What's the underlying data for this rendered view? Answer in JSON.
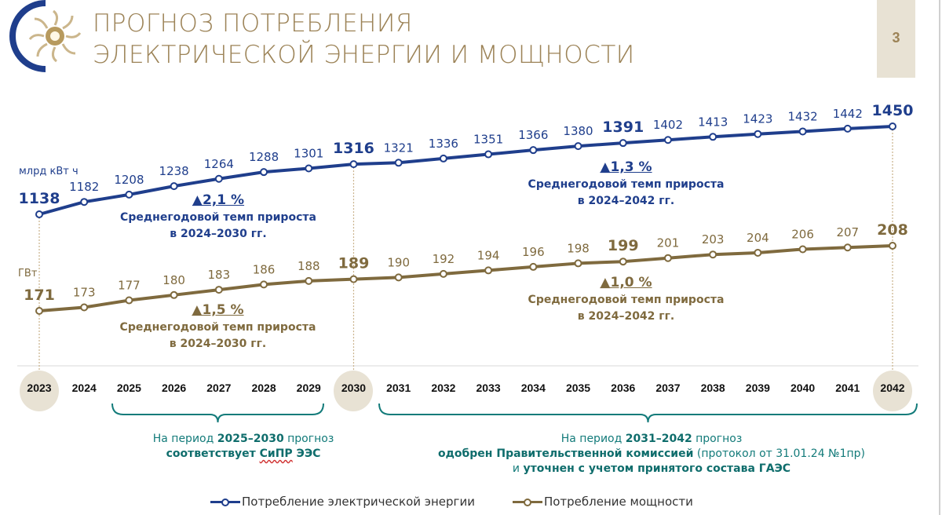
{
  "header": {
    "title_line1": "ПРОГНОЗ ПОТРЕБЛЕНИЯ",
    "title_line2": "ЭЛЕКТРИЧЕСКОЙ ЭНЕРГИИ И МОЩНОСТИ",
    "page_number": "3",
    "logo": "sun-logo-icon"
  },
  "colors": {
    "energy": "#1f3e8c",
    "power": "#7f6a3e",
    "title": "#9c8357",
    "period_text": "#137b7a",
    "highlight_circle": "#e8e2d4"
  },
  "chart_data": {
    "type": "line",
    "title": "Прогноз потребления электрической энергии и мощности",
    "x": [
      "2023",
      "2024",
      "2025",
      "2026",
      "2027",
      "2028",
      "2029",
      "2030",
      "2031",
      "2032",
      "2033",
      "2034",
      "2035",
      "2036",
      "2037",
      "2038",
      "2039",
      "2040",
      "2041",
      "2042"
    ],
    "series": [
      {
        "name": "Потребление электрической энергии",
        "unit": "млрд кВт ч",
        "values": [
          1138,
          1182,
          1208,
          1238,
          1264,
          1288,
          1301,
          1316,
          1321,
          1336,
          1351,
          1366,
          1380,
          1391,
          1402,
          1413,
          1423,
          1432,
          1442,
          1450
        ],
        "bold_points": [
          "2023",
          "2030",
          "2036",
          "2042"
        ]
      },
      {
        "name": "Потребление мощности",
        "unit": "ГВт",
        "values": [
          171,
          173,
          177,
          180,
          183,
          186,
          188,
          189,
          190,
          192,
          194,
          196,
          198,
          199,
          201,
          203,
          204,
          206,
          207,
          208
        ],
        "bold_points": [
          "2023",
          "2030",
          "2036",
          "2042"
        ]
      }
    ],
    "highlighted_years": [
      "2023",
      "2030",
      "2042"
    ],
    "legend_position": "bottom",
    "grid": false
  },
  "annotations": {
    "energy_2030": {
      "pct": "▲2,1 %",
      "line1": "Среднегодовой темп прироста",
      "line2": "в 2024–2030 гг."
    },
    "energy_2042": {
      "pct": "▲1,3 %",
      "line1": "Среднегодовой темп прироста",
      "line2": "в 2024–2042 гг."
    },
    "power_2030": {
      "pct": "▲1,5 %",
      "line1": "Среднегодовой темп прироста",
      "line2": "в 2024–2030 гг."
    },
    "power_2042": {
      "pct": "▲1,0 %",
      "line1": "Среднегодовой темп прироста",
      "line2": "в 2024–2042 гг."
    }
  },
  "periods": {
    "first": {
      "prefix": "На период ",
      "range": "2025–2030",
      "suffix": " прогноз",
      "line2_a": "соответствует ",
      "line2_b": "СиПР",
      "line2_c": " ЭЭС"
    },
    "second": {
      "prefix": "На период ",
      "range": "2031–2042",
      "suffix": " прогноз",
      "line2_bold": "одобрен Правительственной комиссией",
      "line2_light": " (протокол от 31.01.24 №1пр)",
      "line3_light": "и ",
      "line3_bold": "уточнен с учетом принятого состава ГАЭС"
    }
  },
  "legend": {
    "energy": "Потребление электрической энергии",
    "power": "Потребление мощности"
  }
}
